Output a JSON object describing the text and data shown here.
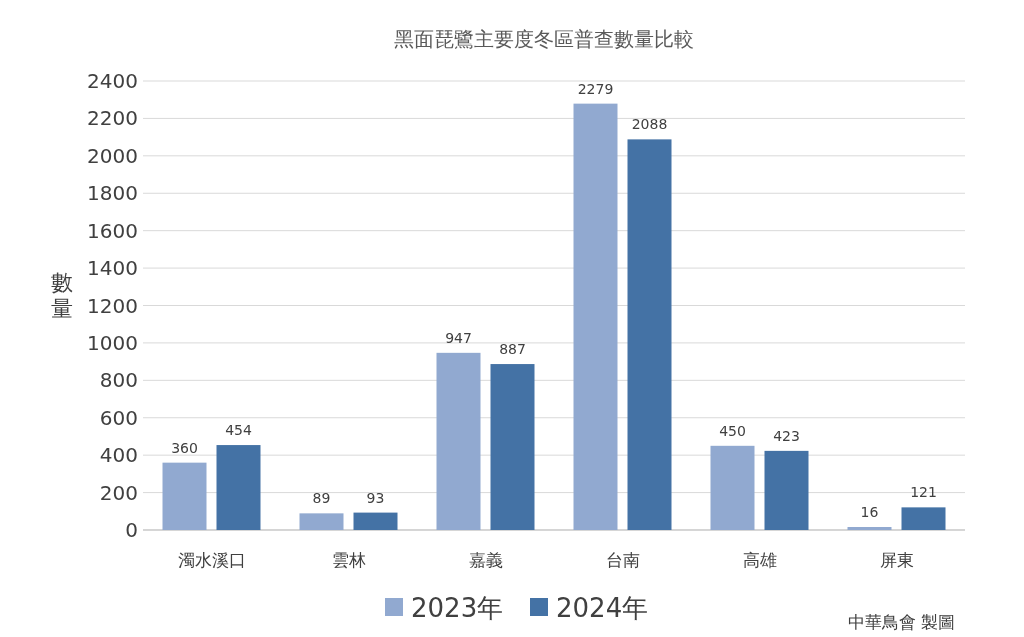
{
  "chart_data": {
    "type": "bar",
    "title": "黑面琵鷺主要度冬區普查數量比較",
    "ylabel": "數量",
    "categories": [
      "濁水溪口",
      "雲林",
      "嘉義",
      "台南",
      "高雄",
      "屏東"
    ],
    "series": [
      {
        "name": "2023年",
        "color": "#91a9d0",
        "values": [
          360,
          89,
          947,
          2279,
          450,
          16
        ]
      },
      {
        "name": "2024年",
        "color": "#4472a5",
        "values": [
          454,
          93,
          887,
          2088,
          423,
          121
        ]
      }
    ],
    "ylim": [
      0,
      2400
    ],
    "yticks": [
      0,
      200,
      400,
      600,
      800,
      1000,
      1200,
      1400,
      1600,
      1800,
      2000,
      2200,
      2400
    ],
    "grid": "y",
    "legend": "bottom",
    "data_labels": true,
    "annotations": [
      "中華鳥會 製圖"
    ]
  }
}
